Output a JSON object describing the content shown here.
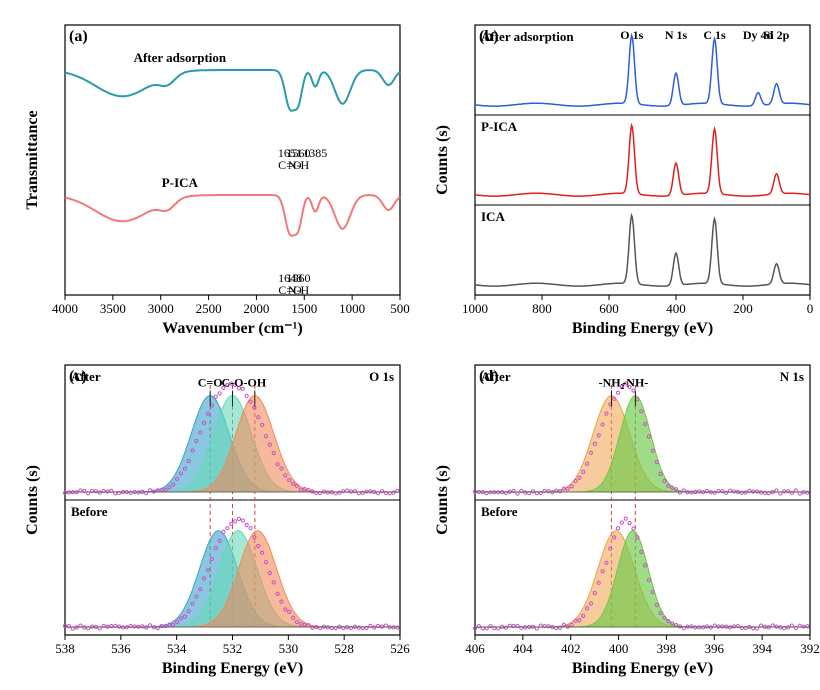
{
  "figure": {
    "background": "#ffffff",
    "axis_color": "#000000",
    "tick_fontsize": 13,
    "label_fontsize": 16
  },
  "panel_a": {
    "tag": "(a)",
    "xlabel": "Wavenumber (cm⁻¹)",
    "ylabel": "Transmittance",
    "xlim": [
      4000,
      500
    ],
    "xticks": [
      4000,
      3500,
      3000,
      2500,
      2000,
      1500,
      1000,
      500
    ],
    "traces": [
      {
        "name": "After adsorption",
        "label": "After adsorption",
        "color": "#2a9ba8",
        "linewidth": 2,
        "annotations": [
          {
            "x": 1651,
            "text": "1651",
            "sub": "C=O"
          },
          {
            "x": 1560,
            "text": "1560",
            "sub": "N-H"
          },
          {
            "x": 1385,
            "text": "1385"
          }
        ]
      },
      {
        "name": "P-ICA",
        "label": "P-ICA",
        "color": "#f07a7a",
        "linewidth": 2,
        "annotations": [
          {
            "x": 1648,
            "text": "1648",
            "sub": "C=O"
          },
          {
            "x": 1560,
            "text": "1560",
            "sub": "N-H"
          }
        ]
      }
    ]
  },
  "panel_b": {
    "tag": "(b)",
    "xlabel": "Binding Energy (eV)",
    "ylabel": "Counts (s)",
    "xlim": [
      1000,
      0
    ],
    "xticks": [
      1000,
      800,
      600,
      400,
      200,
      0
    ],
    "traces": [
      {
        "name": "After adsorption",
        "label": "After adsorption",
        "color": "#2b5fd9",
        "linewidth": 1.5
      },
      {
        "name": "P-ICA",
        "label": "P-ICA",
        "color": "#e02020",
        "linewidth": 1.5
      },
      {
        "name": "ICA",
        "label": "ICA",
        "color": "#555555",
        "linewidth": 1.5
      }
    ],
    "peak_labels": [
      {
        "x": 532,
        "text": "O 1s"
      },
      {
        "x": 400,
        "text": "N 1s"
      },
      {
        "x": 285,
        "text": "C 1s"
      },
      {
        "x": 155,
        "text": "Dy 4d"
      },
      {
        "x": 100,
        "text": "Si 2p"
      }
    ]
  },
  "panel_c": {
    "tag": "(c)",
    "xlabel": "Binding Energy (eV)",
    "ylabel": "Counts (s)",
    "xlim": [
      538,
      526
    ],
    "xticks": [
      538,
      536,
      534,
      532,
      530,
      528,
      526
    ],
    "spectrum_label": "O 1s",
    "rows": [
      {
        "label": "After",
        "components": [
          {
            "label": "C=O",
            "center": 532.8,
            "fwhm": 1.6,
            "color": "#3aa3c9",
            "fill_opacity": 0.6
          },
          {
            "label": "C-O",
            "center": 532.0,
            "fwhm": 1.6,
            "color": "#66d9b8",
            "fill_opacity": 0.6
          },
          {
            "label": "-OH",
            "center": 531.2,
            "fwhm": 1.6,
            "color": "#f08a5a",
            "fill_opacity": 0.6
          }
        ],
        "envelope_color": "#c850c8"
      },
      {
        "label": "Before",
        "components": [
          {
            "center": 532.5,
            "fwhm": 1.6,
            "color": "#3aa3c9",
            "fill_opacity": 0.6
          },
          {
            "center": 531.8,
            "fwhm": 1.6,
            "color": "#66d9b8",
            "fill_opacity": 0.6
          },
          {
            "center": 531.1,
            "fwhm": 1.6,
            "color": "#f08a5a",
            "fill_opacity": 0.6
          }
        ],
        "envelope_color": "#c850c8"
      }
    ],
    "guide_color": "#d04040",
    "guide_dash": "4,3"
  },
  "panel_d": {
    "tag": "(d)",
    "xlabel": "Binding Energy (eV)",
    "ylabel": "Counts (s)",
    "xlim": [
      406,
      392
    ],
    "xticks": [
      406,
      404,
      402,
      400,
      398,
      396,
      394,
      392
    ],
    "spectrum_label": "N 1s",
    "rows": [
      {
        "label": "After",
        "components": [
          {
            "label": "-NH₂",
            "center": 400.3,
            "fwhm": 1.8,
            "color": "#f0a048",
            "fill_opacity": 0.55
          },
          {
            "label": "-NH-",
            "center": 399.3,
            "fwhm": 1.5,
            "color": "#6bc948",
            "fill_opacity": 0.65
          }
        ],
        "envelope_color": "#c850c8"
      },
      {
        "label": "Before",
        "components": [
          {
            "center": 400.1,
            "fwhm": 1.8,
            "color": "#f0a048",
            "fill_opacity": 0.55
          },
          {
            "center": 399.4,
            "fwhm": 1.5,
            "color": "#6bc948",
            "fill_opacity": 0.65
          }
        ],
        "envelope_color": "#c850c8"
      }
    ],
    "guide_color": "#d04040",
    "guide_dash": "4,3"
  }
}
